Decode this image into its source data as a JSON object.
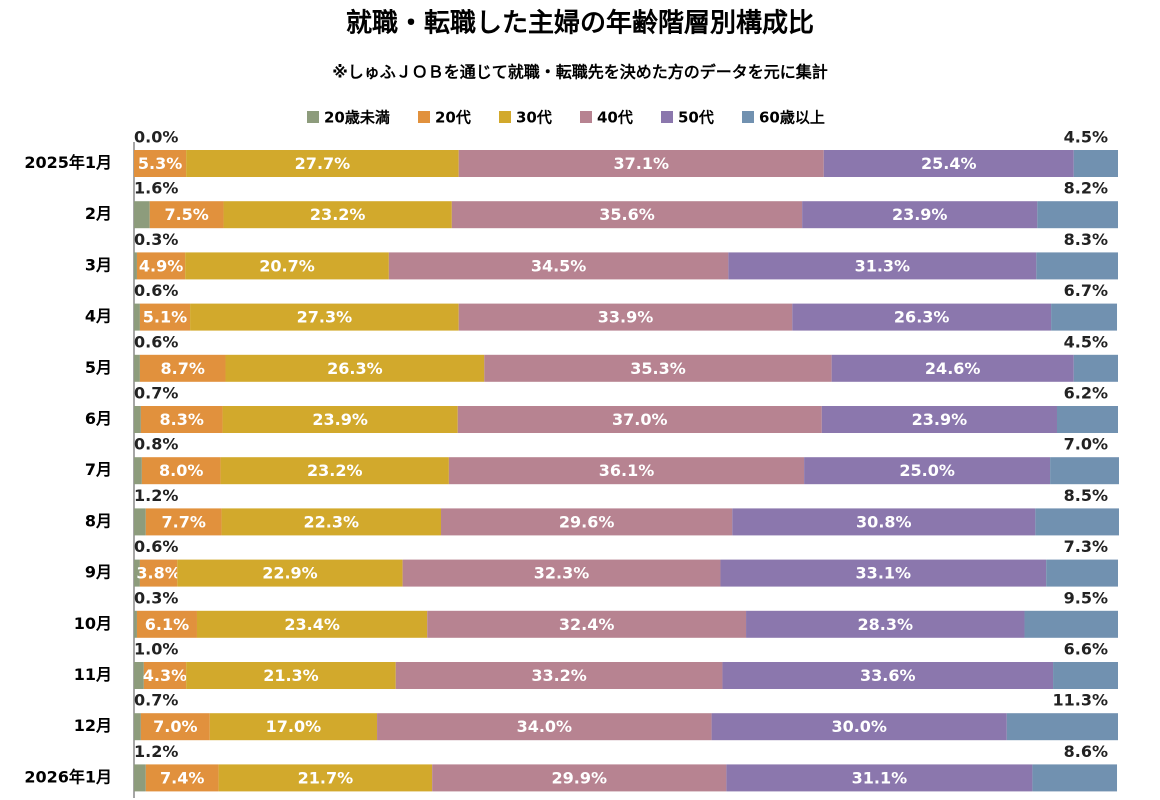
{
  "chart_data": {
    "type": "stacked-bar-horizontal",
    "title": "就職・転職した主婦の年齢階層別構成比",
    "subtitle": "※しゅふＪＯＢを通じて就職・転職先を決めた方のデータを元に集計",
    "categories": [
      "2025年1月",
      "2月",
      "3月",
      "4月",
      "5月",
      "6月",
      "7月",
      "8月",
      "9月",
      "10月",
      "11月",
      "12月",
      "2026年1月"
    ],
    "xlim": [
      0,
      100
    ],
    "legend": "top",
    "series": [
      {
        "name": "20歳未満",
        "color": "#8d9c7c",
        "values": [
          0.0,
          1.6,
          0.3,
          0.6,
          0.6,
          0.7,
          0.8,
          1.2,
          0.6,
          0.3,
          1.0,
          0.7,
          1.2
        ],
        "value_labels": [
          "0.0%",
          "1.6%",
          "0.3%",
          "0.6%",
          "0.6%",
          "0.7%",
          "0.8%",
          "1.2%",
          "0.6%",
          "0.3%",
          "1.0%",
          "0.7%",
          "1.2%"
        ]
      },
      {
        "name": "20代",
        "color": "#e1913d",
        "values": [
          5.3,
          7.5,
          4.9,
          5.1,
          8.7,
          8.3,
          8.0,
          7.7,
          3.8,
          6.1,
          4.3,
          7.0,
          7.4
        ],
        "value_labels": [
          "5.3%",
          "7.5%",
          "4.9%",
          "5.1%",
          "8.7%",
          "8.3%",
          "8.0%",
          "7.7%",
          "3.8%",
          "6.1%",
          "4.3%",
          "7.0%",
          "7.4%"
        ]
      },
      {
        "name": "30代",
        "color": "#d2a92c",
        "values": [
          27.7,
          23.2,
          20.7,
          27.3,
          26.3,
          23.9,
          23.2,
          22.3,
          22.9,
          23.4,
          21.3,
          17.0,
          21.7
        ],
        "value_labels": [
          "27.7%",
          "23.2%",
          "20.7%",
          "27.3%",
          "26.3%",
          "23.9%",
          "23.2%",
          "22.3%",
          "22.9%",
          "23.4%",
          "21.3%",
          "17.0%",
          "21.7%"
        ]
      },
      {
        "name": "40代",
        "color": "#b78391",
        "values": [
          37.1,
          35.6,
          34.5,
          33.9,
          35.3,
          37.0,
          36.1,
          29.6,
          32.3,
          32.4,
          33.2,
          34.0,
          29.9
        ],
        "value_labels": [
          "37.1%",
          "35.6%",
          "34.5%",
          "33.9%",
          "35.3%",
          "37.0%",
          "36.1%",
          "29.6%",
          "32.3%",
          "32.4%",
          "33.2%",
          "34.0%",
          "29.9%"
        ]
      },
      {
        "name": "50代",
        "color": "#8b77ad",
        "values": [
          25.4,
          23.9,
          31.3,
          26.3,
          24.6,
          23.9,
          25.0,
          30.8,
          33.1,
          28.3,
          33.6,
          30.0,
          31.1
        ],
        "value_labels": [
          "25.4%",
          "23.9%",
          "31.3%",
          "26.3%",
          "24.6%",
          "23.9%",
          "25.0%",
          "30.8%",
          "33.1%",
          "28.3%",
          "33.6%",
          "30.0%",
          "31.1%"
        ]
      },
      {
        "name": "60歳以上",
        "color": "#7191b0",
        "values": [
          4.5,
          8.2,
          8.3,
          6.7,
          4.5,
          6.2,
          7.0,
          8.5,
          7.3,
          9.5,
          6.6,
          11.3,
          8.6
        ],
        "value_labels": [
          "4.5%",
          "8.2%",
          "8.3%",
          "6.7%",
          "4.5%",
          "6.2%",
          "7.0%",
          "8.5%",
          "7.3%",
          "9.5%",
          "6.6%",
          "11.3%",
          "8.6%"
        ]
      }
    ]
  }
}
